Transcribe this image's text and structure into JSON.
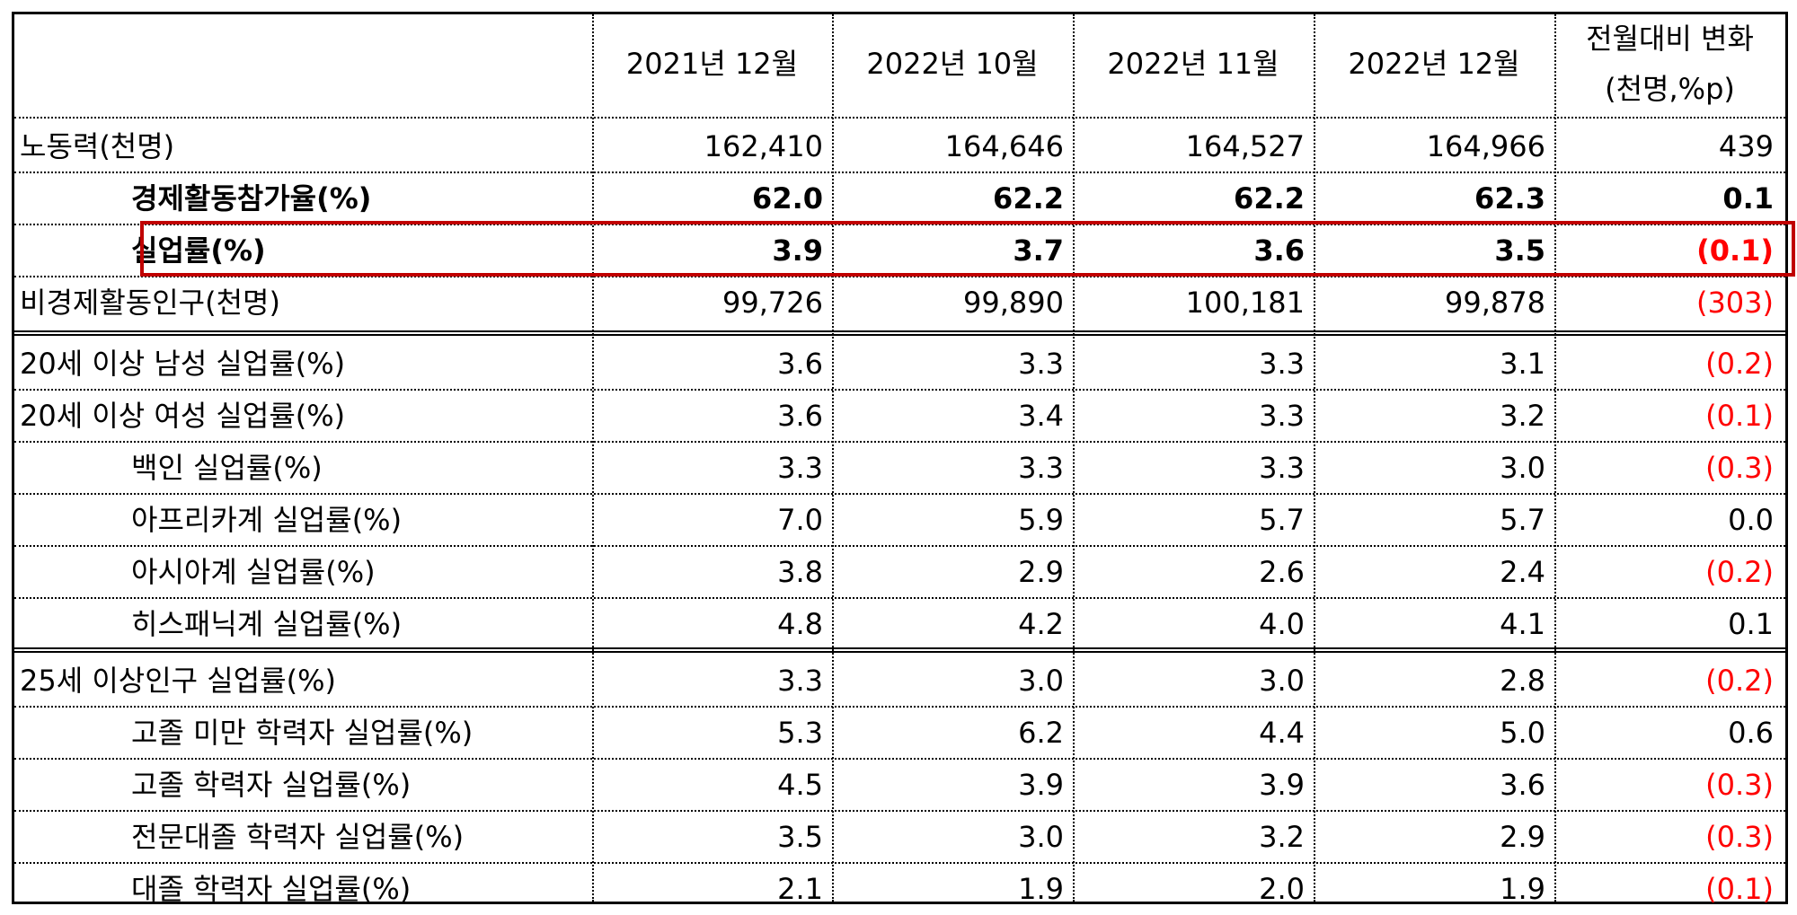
{
  "headers": [
    "",
    "2021년 12월",
    "2022년 10월",
    "2022년 11월",
    "2022년 12월",
    "전월대비 변화",
    "(천명,%p)"
  ],
  "rows": [
    {
      "label": "노동력(천명)",
      "values": [
        "162,410",
        "164,646",
        "164,527",
        "164,966",
        "439"
      ],
      "indent": 0,
      "bold": false,
      "neg": false
    },
    {
      "label": "경제활동참가율(%)",
      "values": [
        "62.0",
        "62.2",
        "62.2",
        "62.3",
        "0.1"
      ],
      "indent": 1,
      "bold": true,
      "neg": false
    },
    {
      "label": "실업률(%)",
      "values": [
        "3.9",
        "3.7",
        "3.6",
        "3.5",
        "(0.1)"
      ],
      "indent": 1,
      "bold": true,
      "neg": true
    },
    {
      "label": "비경제활동인구(천명)",
      "values": [
        "99,726",
        "99,890",
        "100,181",
        "99,878",
        "(303)"
      ],
      "indent": 0,
      "bold": false,
      "neg": true
    },
    {
      "label": "20세 이상 남성 실업률(%)",
      "values": [
        "3.6",
        "3.3",
        "3.3",
        "3.1",
        "(0.2)"
      ],
      "indent": 0,
      "bold": false,
      "neg": true
    },
    {
      "label": "20세 이상 여성 실업률(%)",
      "values": [
        "3.6",
        "3.4",
        "3.3",
        "3.2",
        "(0.1)"
      ],
      "indent": 0,
      "bold": false,
      "neg": true
    },
    {
      "label": "백인 실업률(%)",
      "values": [
        "3.3",
        "3.3",
        "3.3",
        "3.0",
        "(0.3)"
      ],
      "indent": 1,
      "bold": false,
      "neg": true
    },
    {
      "label": "아프리카계 실업률(%)",
      "values": [
        "7.0",
        "5.9",
        "5.7",
        "5.7",
        "0.0"
      ],
      "indent": 1,
      "bold": false,
      "neg": false
    },
    {
      "label": "아시아계 실업률(%)",
      "values": [
        "3.8",
        "2.9",
        "2.6",
        "2.4",
        "(0.2)"
      ],
      "indent": 1,
      "bold": false,
      "neg": true
    },
    {
      "label": "히스패닉계 실업률(%)",
      "values": [
        "4.8",
        "4.2",
        "4.0",
        "4.1",
        "0.1"
      ],
      "indent": 1,
      "bold": false,
      "neg": false
    },
    {
      "label": "25세 이상인구 실업률(%)",
      "values": [
        "3.3",
        "3.0",
        "3.0",
        "2.8",
        "(0.2)"
      ],
      "indent": 0,
      "bold": false,
      "neg": true
    },
    {
      "label": "고졸 미만 학력자 실업률(%)",
      "values": [
        "5.3",
        "6.2",
        "4.4",
        "5.0",
        "0.6"
      ],
      "indent": 1,
      "bold": false,
      "neg": false
    },
    {
      "label": "고졸 학력자 실업률(%)",
      "values": [
        "4.5",
        "3.9",
        "3.9",
        "3.6",
        "(0.3)"
      ],
      "indent": 1,
      "bold": false,
      "neg": true
    },
    {
      "label": "전문대졸 학력자 실업률(%)",
      "values": [
        "3.5",
        "3.0",
        "3.2",
        "2.9",
        "(0.3)"
      ],
      "indent": 1,
      "bold": false,
      "neg": true
    },
    {
      "label": "대졸 학력자 실업률(%)",
      "values": [
        "2.1",
        "1.9",
        "2.0",
        "1.9",
        "(0.1)"
      ],
      "indent": 1,
      "bold": false,
      "neg": true
    }
  ],
  "colors": {
    "negative": "#ff0000",
    "highlight_box": "#c00000"
  }
}
